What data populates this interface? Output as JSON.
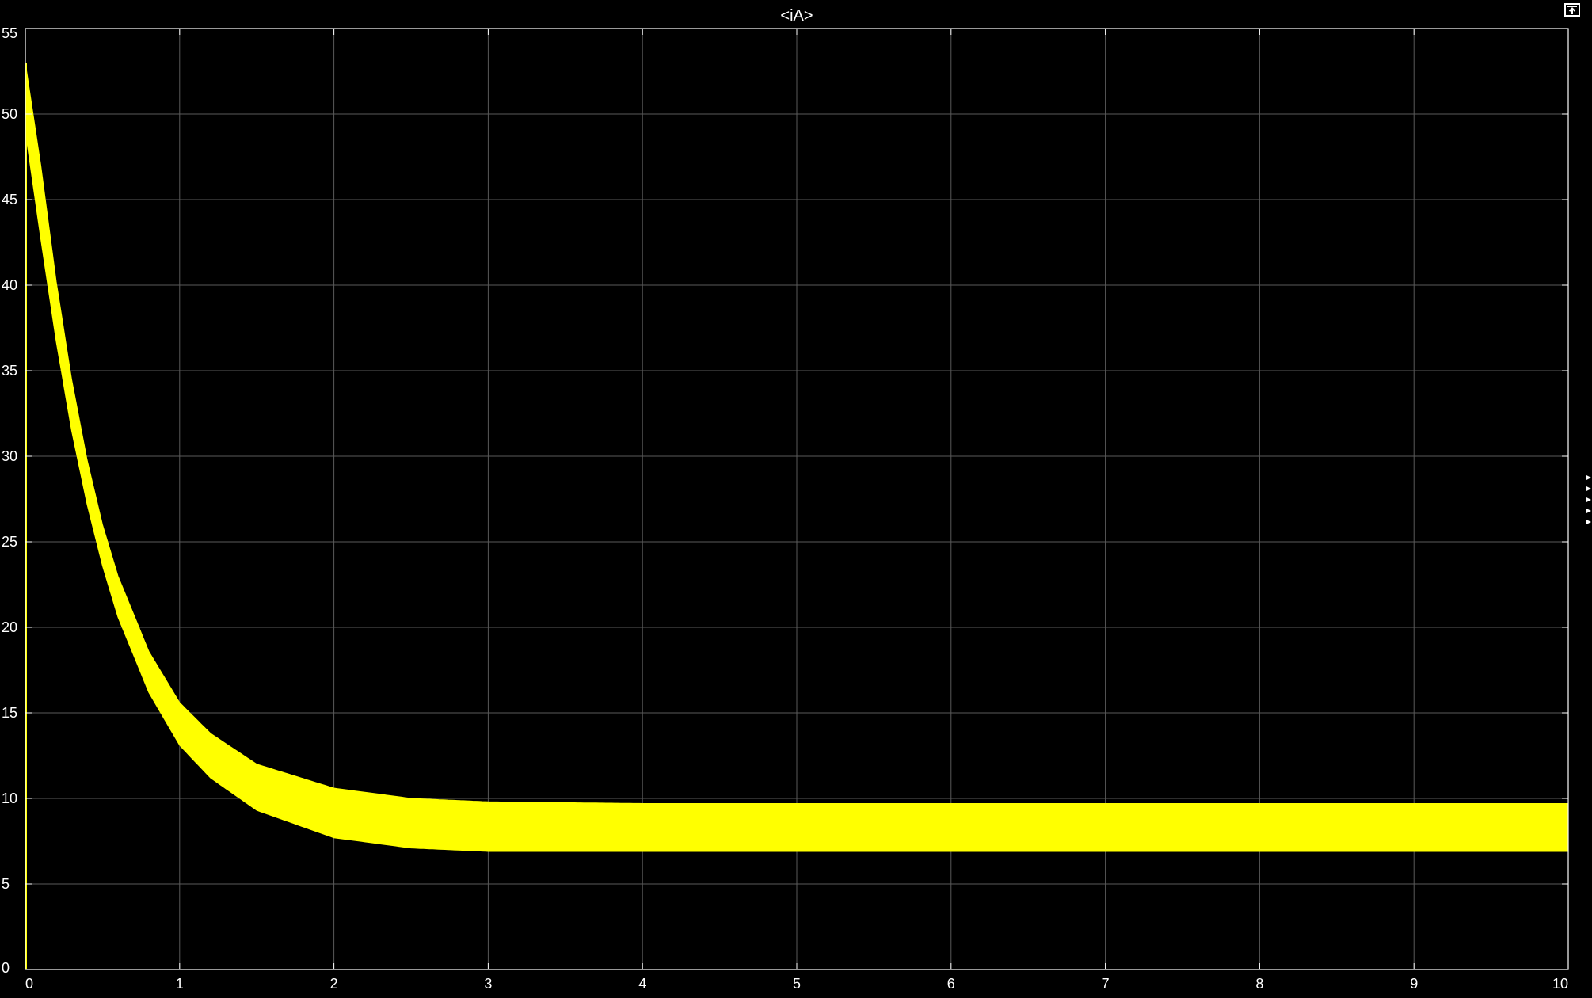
{
  "window": {
    "undock_icon": "undock-icon",
    "resize_handle_icon": "resize-grip-icon"
  },
  "colors": {
    "background": "#000000",
    "grid": "#5a5a5a",
    "axes": "#ffffff",
    "text": "#ffffff",
    "signal": "#ffff00"
  },
  "chart_data": {
    "type": "area",
    "title": "<iA>",
    "xlabel": "",
    "ylabel": "",
    "xlim": [
      0,
      10
    ],
    "ylim": [
      0,
      55
    ],
    "grid": true,
    "x_ticks": [
      "0",
      "1",
      "2",
      "3",
      "4",
      "5",
      "6",
      "7",
      "8",
      "9",
      "10"
    ],
    "y_ticks": [
      "0",
      "5",
      "10",
      "15",
      "20",
      "25",
      "30",
      "35",
      "40",
      "45",
      "50",
      "55"
    ],
    "series": [
      {
        "color": "#ffff00",
        "x": [
          0,
          0.1,
          0.2,
          0.3,
          0.4,
          0.5,
          0.6,
          0.8,
          1.0,
          1.2,
          1.5,
          2.0,
          2.5,
          3.0,
          4.0,
          5.0,
          6.0,
          7.0,
          8.0,
          9.0,
          10.0
        ],
        "upper": [
          53,
          47,
          40.2,
          34.5,
          29.8,
          26.0,
          23.0,
          18.6,
          15.6,
          13.8,
          12.0,
          10.6,
          10.0,
          9.8,
          9.7,
          9.7,
          9.7,
          9.7,
          9.7,
          9.7,
          9.7
        ],
        "lower": [
          49,
          42.7,
          36.7,
          31.5,
          27.2,
          23.6,
          20.6,
          16.2,
          13.1,
          11.2,
          9.3,
          7.7,
          7.1,
          6.9,
          6.9,
          6.9,
          6.9,
          6.9,
          6.9,
          6.9,
          6.9
        ]
      }
    ]
  }
}
